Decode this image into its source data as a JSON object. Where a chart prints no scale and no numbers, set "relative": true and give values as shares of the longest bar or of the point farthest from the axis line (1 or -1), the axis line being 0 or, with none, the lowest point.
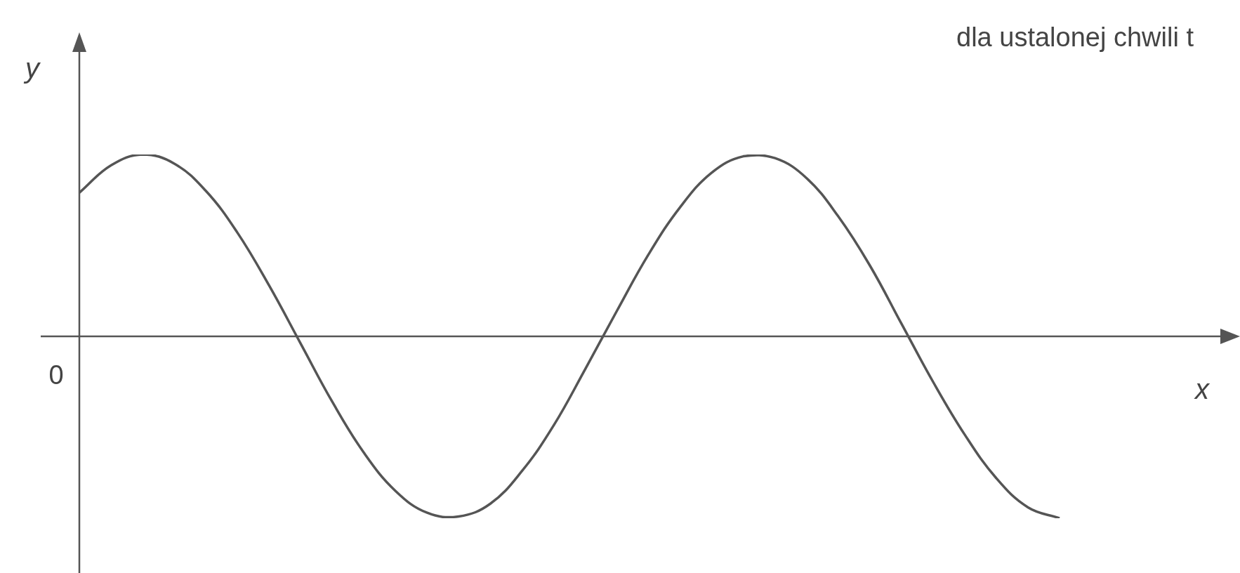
{
  "chart_data": {
    "type": "line",
    "relative": true,
    "title": "dla ustalonej chwili t",
    "xlabel": "x",
    "ylabel": "y",
    "annotations": [
      "0"
    ],
    "categories": [
      null,
      null,
      null,
      null,
      null,
      null,
      null,
      null,
      null,
      null,
      null,
      null,
      null,
      null,
      null,
      null,
      null,
      null,
      null,
      null,
      null,
      null,
      null,
      null,
      null,
      null,
      null,
      null,
      null,
      null,
      null,
      null
    ],
    "series": [
      {
        "color": "#555555",
        "values": [
          0.79,
          0.94,
          1,
          0.95,
          0.8,
          0.57,
          0.28,
          -0.04,
          -0.36,
          -0.64,
          -0.85,
          -0.97,
          -0.99,
          -0.92,
          -0.74,
          -0.49,
          -0.18,
          0.14,
          0.45,
          0.71,
          0.9,
          0.99,
          0.98,
          0.87,
          0.66,
          0.39,
          0.07,
          -0.25,
          -0.54,
          -0.78,
          -0.94,
          -1
        ]
      }
    ],
    "marker": "none",
    "line_style": "solid",
    "legend": false
  }
}
